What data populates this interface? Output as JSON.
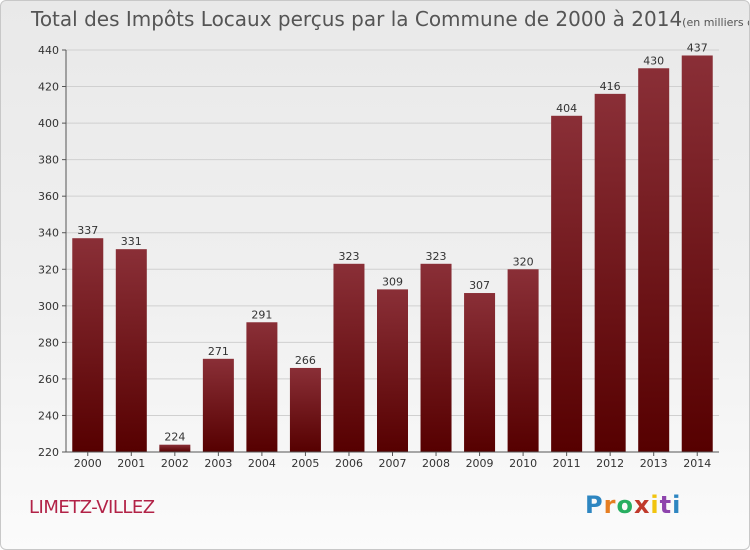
{
  "title": "Total des Impôts Locaux perçus par la Commune de 2000 à 2014",
  "subtitle": "(en milliers d'€)",
  "commune": "LIMETZ-VILLEZ",
  "logo": {
    "letters": [
      "P",
      "r",
      "o",
      "x",
      "i",
      "t",
      "i"
    ],
    "colors": [
      "#2e86c1",
      "#e67e22",
      "#27ae60",
      "#c0392b",
      "#f1c40f",
      "#8e44ad",
      "#2e86c1"
    ]
  },
  "colors": {
    "bar_top": "#8a2f37",
    "bar_bottom": "#560000",
    "commune": "#b22247"
  },
  "chart_data": {
    "type": "bar",
    "title": "Total des Impôts Locaux perçus par la Commune de 2000 à 2014",
    "xlabel": "",
    "ylabel": "",
    "categories": [
      "2000",
      "2001",
      "2002",
      "2003",
      "2004",
      "2005",
      "2006",
      "2007",
      "2008",
      "2009",
      "2010",
      "2011",
      "2012",
      "2013",
      "2014"
    ],
    "values": [
      337,
      331,
      224,
      271,
      291,
      266,
      323,
      309,
      323,
      307,
      320,
      404,
      416,
      430,
      437
    ],
    "ylim": [
      220,
      440
    ],
    "yticks": [
      220,
      240,
      260,
      280,
      300,
      320,
      340,
      360,
      380,
      400,
      420,
      440
    ],
    "grid": true
  }
}
